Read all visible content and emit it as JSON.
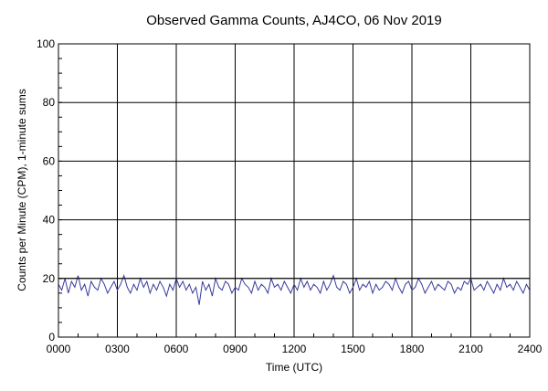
{
  "chart_data": {
    "type": "line",
    "title": "Observed Gamma Counts, AJ4CO, 06 Nov 2019",
    "xlabel": "Time (UTC)",
    "ylabel": "Counts per Minute (CPM), 1-minute sums",
    "xlim": [
      0,
      1440
    ],
    "ylim": [
      0,
      100
    ],
    "x_ticks": [
      {
        "minute": 0,
        "label": "0000"
      },
      {
        "minute": 180,
        "label": "0300"
      },
      {
        "minute": 360,
        "label": "0600"
      },
      {
        "minute": 540,
        "label": "0900"
      },
      {
        "minute": 720,
        "label": "1200"
      },
      {
        "minute": 900,
        "label": "1500"
      },
      {
        "minute": 1080,
        "label": "1800"
      },
      {
        "minute": 1260,
        "label": "2100"
      },
      {
        "minute": 1440,
        "label": "2400"
      }
    ],
    "y_ticks": [
      {
        "value": 0,
        "label": "0"
      },
      {
        "value": 20,
        "label": "20"
      },
      {
        "value": 40,
        "label": "40"
      },
      {
        "value": 60,
        "label": "60"
      },
      {
        "value": 80,
        "label": "80"
      },
      {
        "value": 100,
        "label": "100"
      }
    ],
    "grid": true,
    "reference_line": 20,
    "colors": {
      "series": "#3a3a9e",
      "grid": "#000000",
      "reference_line": "#000000",
      "background": "#ffffff"
    },
    "series": [
      {
        "x_step_minutes": 10,
        "values": [
          18,
          16,
          20,
          15,
          19,
          17,
          21,
          16,
          18,
          14,
          19,
          17,
          16,
          20,
          18,
          15,
          17,
          19,
          16,
          18,
          21,
          17,
          15,
          18,
          16,
          20,
          17,
          19,
          15,
          18,
          16,
          19,
          17,
          14,
          18,
          16,
          20,
          17,
          19,
          16,
          18,
          15,
          17,
          11,
          19,
          16,
          18,
          14,
          20,
          17,
          16,
          19,
          18,
          15,
          17,
          16,
          20,
          18,
          17,
          15,
          19,
          16,
          18,
          17,
          15,
          20,
          17,
          18,
          16,
          19,
          17,
          15,
          18,
          16,
          20,
          17,
          19,
          16,
          18,
          17,
          15,
          19,
          16,
          18,
          21,
          17,
          16,
          19,
          18,
          15,
          17,
          20,
          16,
          18,
          17,
          19,
          15,
          18,
          16,
          17,
          19,
          18,
          16,
          20,
          17,
          15,
          18,
          19,
          16,
          17,
          20,
          18,
          15,
          17,
          19,
          16,
          18,
          17,
          16,
          19,
          18,
          15,
          17,
          16,
          19,
          18,
          20,
          16,
          17,
          18,
          16,
          19,
          17,
          15,
          18,
          16,
          20,
          17,
          18,
          16,
          19,
          17,
          15,
          18,
          16
        ]
      }
    ]
  }
}
